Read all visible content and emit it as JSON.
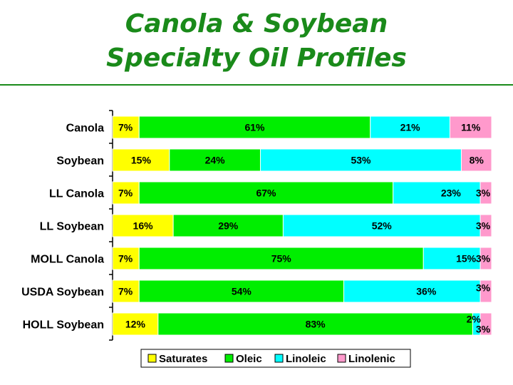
{
  "title": {
    "line1": "Canola & Soybean",
    "line2": "Specialty Oil Profiles"
  },
  "colors": {
    "title": "#1a8a1a",
    "Saturates": "#ffff00",
    "Oleic": "#00ee00",
    "Linoleic": "#00ffff",
    "Linolenic": "#ff99cc"
  },
  "chart_data": {
    "type": "bar",
    "orientation": "horizontal",
    "stacked": true,
    "title": "Canola & Soybean Specialty Oil Profiles",
    "categories": [
      "Canola",
      "Soybean",
      "LL Canola",
      "LL Soybean",
      "MOLL Canola",
      "USDA Soybean",
      "HOLL Soybean"
    ],
    "series": [
      {
        "name": "Saturates",
        "values": [
          7,
          15,
          7,
          16,
          7,
          7,
          12
        ]
      },
      {
        "name": "Oleic",
        "values": [
          61,
          24,
          67,
          29,
          75,
          54,
          83
        ]
      },
      {
        "name": "Linoleic",
        "values": [
          21,
          53,
          23,
          52,
          15,
          36,
          2
        ]
      },
      {
        "name": "Linolenic",
        "values": [
          11,
          8,
          3,
          3,
          3,
          3,
          3
        ]
      }
    ],
    "xlim": [
      0,
      100
    ],
    "unit": "%",
    "legend_position": "bottom",
    "grid": false
  }
}
